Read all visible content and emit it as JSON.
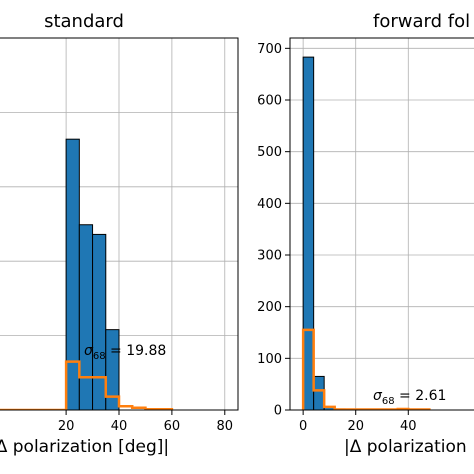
{
  "chart_data": [
    {
      "type": "bar",
      "title": "standard",
      "xlabel": "|Δ polarization [deg]|",
      "ylabel": "",
      "xlim": [
        -5,
        85
      ],
      "ylim": [
        0,
        500
      ],
      "xticks": [
        20,
        40,
        60,
        80
      ],
      "yticks": [],
      "grid": true,
      "bin_edges": [
        -5,
        0,
        5,
        10,
        15,
        20,
        25,
        30,
        35,
        40,
        45,
        50,
        55,
        60
      ],
      "series": [
        {
          "values": [
            0,
            0,
            0,
            0,
            0,
            364,
            249,
            236,
            108,
            0,
            0,
            0,
            0
          ],
          "color": "#1f77b4"
        },
        {
          "values": [
            0,
            0,
            0,
            0,
            0,
            65,
            44,
            44,
            18,
            5,
            3,
            1,
            1
          ],
          "color": "#ff7f0e"
        }
      ],
      "annotation": {
        "text": "σ68 = 19.88"
      }
    },
    {
      "type": "bar",
      "title": "forward fol",
      "xlabel": "|Δ polarization",
      "ylabel": "",
      "xlim": [
        -5,
        65
      ],
      "ylim": [
        0,
        720
      ],
      "xticks": [
        0,
        20,
        40
      ],
      "yticks": [
        0,
        100,
        200,
        300,
        400,
        500,
        600,
        700
      ],
      "grid": true,
      "bin_edges": [
        0,
        4,
        8,
        12,
        16,
        20,
        24,
        28,
        32,
        36,
        40,
        44,
        48
      ],
      "series": [
        {
          "values": [
            683,
            65,
            6,
            2,
            1,
            0,
            0,
            0,
            0,
            0,
            0,
            0
          ],
          "color": "#1f77b4"
        },
        {
          "values": [
            155,
            38,
            6,
            1,
            1,
            1,
            1,
            1,
            1,
            2,
            1,
            1
          ],
          "color": "#ff7f0e"
        }
      ],
      "annotation": {
        "text": "σ68 = 2.61"
      }
    }
  ]
}
